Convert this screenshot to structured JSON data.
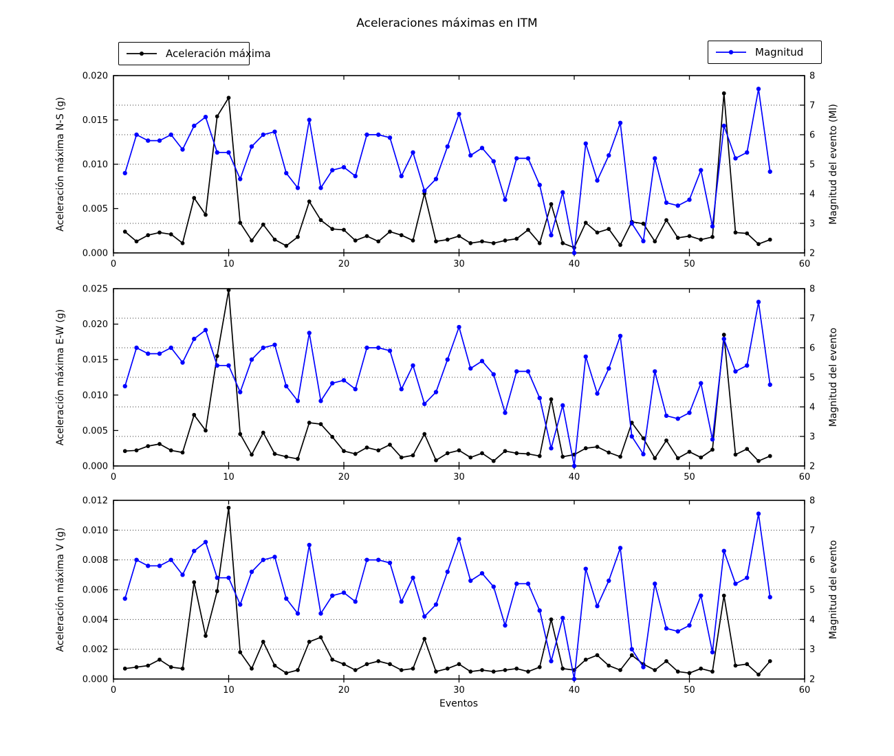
{
  "title": "Aceleraciones máximas en ITM",
  "xlabel": "Eventos",
  "legend": {
    "acceleration": "Aceleración máxima",
    "magnitude": "Magnitud"
  },
  "colors": {
    "acceleration": "#000000",
    "magnitude": "#0000ff",
    "grid": "#333333",
    "frame": "#000000",
    "background": "#ffffff"
  },
  "axes": {
    "xlim": [
      0,
      60
    ],
    "xticks": [
      0,
      10,
      20,
      30,
      40,
      50,
      60
    ],
    "ylim_right": [
      2,
      8
    ],
    "yticks_right": [
      2,
      3,
      4,
      5,
      6,
      7,
      8
    ],
    "grid": "horizontal dotted at right-axis ticks 3-7"
  },
  "events": [
    1,
    2,
    3,
    4,
    5,
    6,
    7,
    8,
    9,
    10,
    11,
    12,
    13,
    14,
    15,
    16,
    17,
    18,
    19,
    20,
    21,
    22,
    23,
    24,
    25,
    26,
    27,
    28,
    29,
    30,
    31,
    32,
    33,
    34,
    35,
    36,
    37,
    38,
    39,
    40,
    41,
    42,
    43,
    44,
    45,
    46,
    47,
    48,
    49,
    50,
    51,
    52,
    53,
    54,
    55,
    56,
    57
  ],
  "chart_data": [
    {
      "type": "line",
      "ylabel": "Aceleración máxima N-S (g)",
      "ylabel_right": "Magnitud del evento (Ml)",
      "ylim": [
        0,
        0.02
      ],
      "yticks": [
        0.0,
        0.005,
        0.01,
        0.015,
        0.02
      ],
      "series": [
        {
          "name": "Aceleración máxima",
          "axis": "left",
          "color": "#000000",
          "values": [
            0.0024,
            0.0013,
            0.002,
            0.0023,
            0.0021,
            0.0011,
            0.0062,
            0.0043,
            0.0154,
            0.0175,
            0.0034,
            0.0014,
            0.0032,
            0.0015,
            0.0008,
            0.0018,
            0.0058,
            0.0037,
            0.0027,
            0.0026,
            0.0014,
            0.0019,
            0.0013,
            0.0024,
            0.002,
            0.0014,
            0.0067,
            0.0013,
            0.0015,
            0.0019,
            0.0011,
            0.0013,
            0.0011,
            0.0014,
            0.0016,
            0.0026,
            0.0011,
            0.0055,
            0.0011,
            0.0006,
            0.0034,
            0.0023,
            0.0027,
            0.0009,
            0.0035,
            0.0033,
            0.0013,
            0.0037,
            0.0017,
            0.0019,
            0.0015,
            0.0018,
            0.018,
            0.0023,
            0.0022,
            0.001,
            0.0015
          ]
        },
        {
          "name": "Magnitud",
          "axis": "right",
          "color": "#0000ff",
          "values": [
            4.7,
            6.0,
            5.8,
            5.8,
            6.0,
            5.5,
            6.3,
            6.6,
            5.4,
            5.4,
            4.5,
            5.6,
            6.0,
            6.1,
            4.7,
            4.2,
            6.5,
            4.2,
            4.8,
            4.9,
            4.6,
            6.0,
            6.0,
            5.9,
            4.6,
            5.4,
            4.1,
            4.5,
            5.6,
            6.7,
            5.3,
            5.55,
            5.1,
            3.8,
            5.2,
            5.2,
            4.3,
            2.6,
            4.05,
            2.0,
            5.7,
            4.45,
            5.3,
            6.4,
            3.0,
            2.4,
            5.2,
            3.7,
            3.6,
            3.8,
            4.8,
            2.9,
            6.3,
            5.2,
            5.4,
            7.55,
            4.75
          ]
        }
      ]
    },
    {
      "type": "line",
      "ylabel": "Aceleración máxima E-W (g)",
      "ylabel_right": "Magnitud del evento",
      "ylim": [
        0,
        0.025
      ],
      "yticks": [
        0.0,
        0.005,
        0.01,
        0.015,
        0.02,
        0.025
      ],
      "series": [
        {
          "name": "Aceleración máxima",
          "axis": "left",
          "color": "#000000",
          "values": [
            0.0021,
            0.0022,
            0.0028,
            0.0031,
            0.0022,
            0.0019,
            0.0072,
            0.005,
            0.0155,
            0.0248,
            0.0045,
            0.0016,
            0.0047,
            0.0017,
            0.0013,
            0.001,
            0.0061,
            0.0059,
            0.0041,
            0.0021,
            0.0017,
            0.0026,
            0.0022,
            0.003,
            0.0012,
            0.0015,
            0.0045,
            0.0008,
            0.0018,
            0.0022,
            0.0012,
            0.0018,
            0.0007,
            0.0021,
            0.0018,
            0.0017,
            0.0014,
            0.0094,
            0.0013,
            0.0016,
            0.0025,
            0.0027,
            0.0019,
            0.0013,
            0.0061,
            0.0039,
            0.0011,
            0.0036,
            0.0011,
            0.002,
            0.0012,
            0.0023,
            0.0185,
            0.0016,
            0.0024,
            0.0007,
            0.0014
          ]
        },
        {
          "name": "Magnitud",
          "axis": "right",
          "color": "#0000ff",
          "values": [
            4.7,
            6.0,
            5.8,
            5.8,
            6.0,
            5.5,
            6.3,
            6.6,
            5.4,
            5.4,
            4.5,
            5.6,
            6.0,
            6.1,
            4.7,
            4.2,
            6.5,
            4.2,
            4.8,
            4.9,
            4.6,
            6.0,
            6.0,
            5.9,
            4.6,
            5.4,
            4.1,
            4.5,
            5.6,
            6.7,
            5.3,
            5.55,
            5.1,
            3.8,
            5.2,
            5.2,
            4.3,
            2.6,
            4.05,
            2.0,
            5.7,
            4.45,
            5.3,
            6.4,
            3.0,
            2.4,
            5.2,
            3.7,
            3.6,
            3.8,
            4.8,
            2.9,
            6.3,
            5.2,
            5.4,
            7.55,
            4.75
          ]
        }
      ]
    },
    {
      "type": "line",
      "ylabel": "Aceleración máxima V (g)",
      "ylabel_right": "Magnitud del evento",
      "ylim": [
        0,
        0.012
      ],
      "yticks": [
        0.0,
        0.002,
        0.004,
        0.006,
        0.008,
        0.01,
        0.012
      ],
      "series": [
        {
          "name": "Aceleración máxima",
          "axis": "left",
          "color": "#000000",
          "values": [
            0.0007,
            0.0008,
            0.0009,
            0.0013,
            0.0008,
            0.0007,
            0.0065,
            0.0029,
            0.0059,
            0.0115,
            0.0018,
            0.0007,
            0.0025,
            0.0009,
            0.0004,
            0.0006,
            0.0025,
            0.0028,
            0.0013,
            0.001,
            0.0006,
            0.001,
            0.0012,
            0.001,
            0.0006,
            0.0007,
            0.0027,
            0.0005,
            0.0007,
            0.001,
            0.0005,
            0.0006,
            0.0005,
            0.0006,
            0.0007,
            0.0005,
            0.0008,
            0.004,
            0.0007,
            0.0006,
            0.0013,
            0.0016,
            0.0009,
            0.0006,
            0.0016,
            0.001,
            0.0006,
            0.0012,
            0.0005,
            0.0004,
            0.0007,
            0.0005,
            0.0056,
            0.0009,
            0.001,
            0.0003,
            0.0012
          ]
        },
        {
          "name": "Magnitud",
          "axis": "right",
          "color": "#0000ff",
          "values": [
            4.7,
            6.0,
            5.8,
            5.8,
            6.0,
            5.5,
            6.3,
            6.6,
            5.4,
            5.4,
            4.5,
            5.6,
            6.0,
            6.1,
            4.7,
            4.2,
            6.5,
            4.2,
            4.8,
            4.9,
            4.6,
            6.0,
            6.0,
            5.9,
            4.6,
            5.4,
            4.1,
            4.5,
            5.6,
            6.7,
            5.3,
            5.55,
            5.1,
            3.8,
            5.2,
            5.2,
            4.3,
            2.6,
            4.05,
            2.0,
            5.7,
            4.45,
            5.3,
            6.4,
            3.0,
            2.4,
            5.2,
            3.7,
            3.6,
            3.8,
            4.8,
            2.9,
            6.3,
            5.2,
            5.4,
            7.55,
            4.75
          ]
        }
      ]
    }
  ]
}
